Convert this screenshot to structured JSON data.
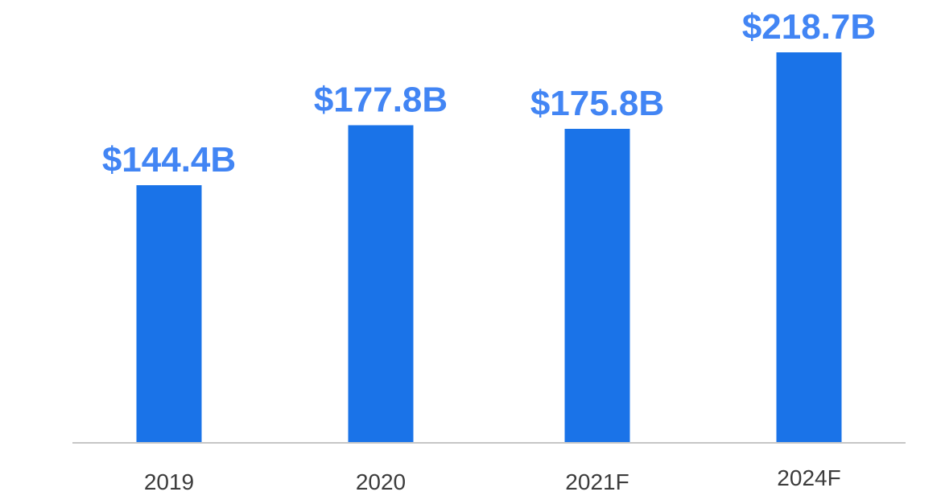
{
  "chart_data": {
    "type": "bar",
    "categories": [
      "2019",
      "2020",
      "2021F",
      "2024F"
    ],
    "values": [
      144.4,
      177.8,
      175.8,
      218.7
    ],
    "data_labels": [
      "$144.4B",
      "$177.8B",
      "$175.8B",
      "$218.7B"
    ],
    "title": "",
    "xlabel": "",
    "ylabel": "",
    "ylim": [
      0,
      218.7
    ],
    "grid": false,
    "legend": "none",
    "colors": {
      "bar": "#1a73e8",
      "value_label": "#4285f4",
      "axis_line": "#c6c6c6",
      "tick_label": "#3c3c3c"
    }
  }
}
